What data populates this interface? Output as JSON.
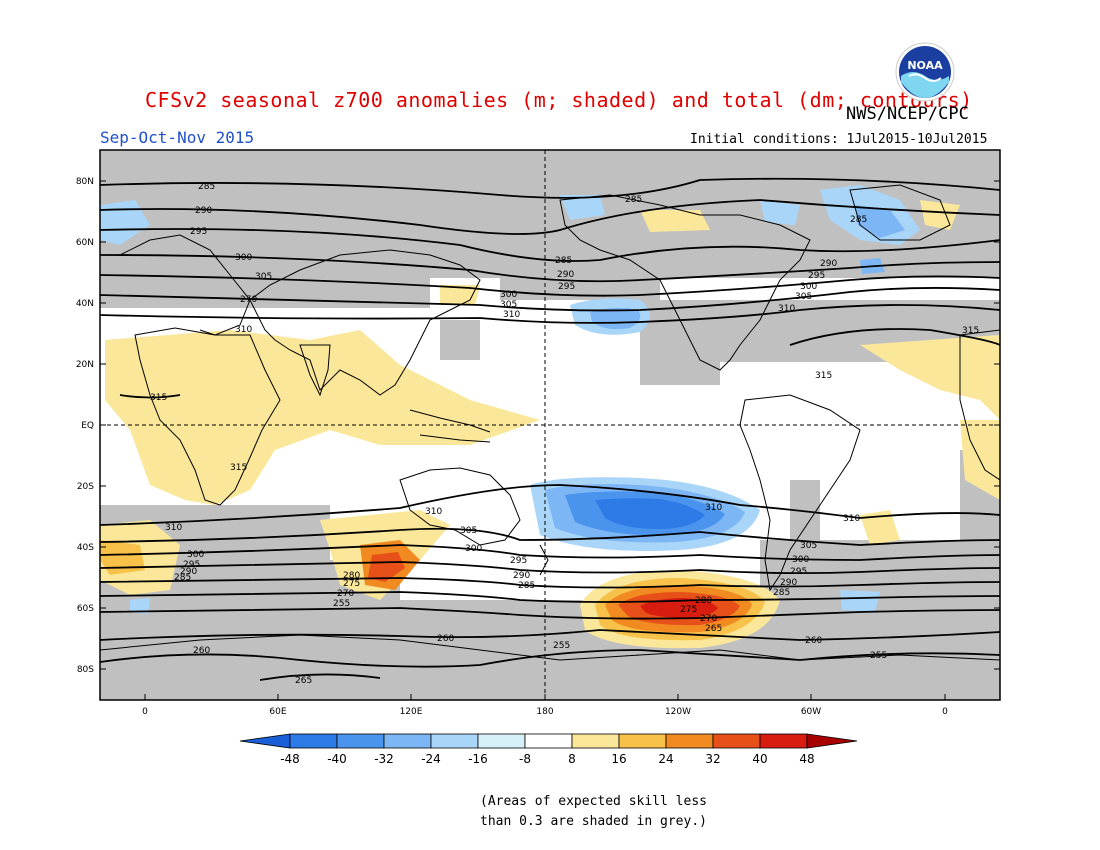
{
  "title": "CFSv2 seasonal z700 anomalies (m; shaded) and total (dm; contours)",
  "agency": "NWS/NCEP/CPC",
  "logo_text": "NOAA",
  "season": "Sep-Oct-Nov 2015",
  "initial_conditions": "Initial conditions: 1Jul2015-10Jul2015",
  "map": {
    "lat_labels": [
      "80N",
      "60N",
      "40N",
      "20N",
      "EQ",
      "20S",
      "40S",
      "60S",
      "80S"
    ],
    "lon_labels": [
      "0",
      "60E",
      "120E",
      "180",
      "120W",
      "60W",
      "0"
    ],
    "contour_labels": [
      "285",
      "290",
      "295",
      "300",
      "305",
      "310",
      "315",
      "265",
      "260",
      "255",
      "270",
      "275",
      "280"
    ]
  },
  "colorbar": {
    "labels": [
      "-48",
      "-40",
      "-32",
      "-24",
      "-16",
      "-8",
      "8",
      "16",
      "24",
      "32",
      "40",
      "48"
    ],
    "colors": [
      "#1a5fd8",
      "#2e7ae6",
      "#4a94ee",
      "#7cb6f4",
      "#a9d6f8",
      "#d6f2f8",
      "#ffffff",
      "#fbe79a",
      "#f7c14a",
      "#f18a20",
      "#e8501a",
      "#d81c10",
      "#a80000"
    ]
  },
  "note": {
    "line1": "(Areas of expected skill less",
    "line2": "than 0.3 are shaded in grey.)"
  }
}
